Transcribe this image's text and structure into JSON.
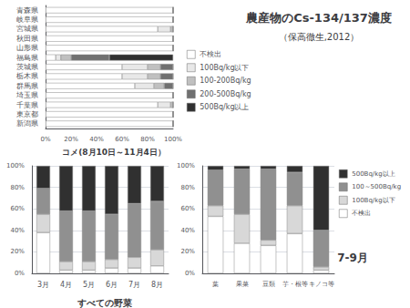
{
  "title": "農産物のCs-134/137濃度",
  "subtitle": "（保高徹生,2012）",
  "chart_data": [
    {
      "type": "bar",
      "orientation": "horizontal",
      "stacked": true,
      "title": "コメ(8月10日～11月4日）",
      "categories": [
        "青森県",
        "岐阜県",
        "宮城県",
        "秋田県",
        "山形県",
        "福島県",
        "茨城県",
        "栃木県",
        "群馬県",
        "埼玉県",
        "千葉県",
        "東京都",
        "新潟県"
      ],
      "series": [
        {
          "name": "不検出",
          "color": "#ffffff",
          "values": [
            100,
            100,
            88,
            100,
            100,
            8,
            60,
            60,
            70,
            100,
            88,
            100,
            100
          ]
        },
        {
          "name": "100Bq/kg以下",
          "color": "#e8e8e8",
          "values": [
            0,
            0,
            10,
            0,
            0,
            4,
            20,
            20,
            15,
            0,
            10,
            0,
            0
          ]
        },
        {
          "name": "100-200Bq/kg",
          "color": "#c0c0c0",
          "values": [
            0,
            0,
            2,
            0,
            0,
            8,
            10,
            10,
            8,
            0,
            2,
            0,
            0
          ]
        },
        {
          "name": "200-500Bq/kg",
          "color": "#707070",
          "values": [
            0,
            0,
            0,
            0,
            0,
            30,
            10,
            10,
            7,
            0,
            0,
            0,
            0
          ]
        },
        {
          "name": "500Bq/kg以上",
          "color": "#303030",
          "values": [
            0,
            0,
            0,
            0,
            0,
            50,
            0,
            0,
            0,
            0,
            0,
            0,
            0
          ]
        }
      ],
      "xlim": [
        0,
        100
      ],
      "xticks": [
        {
          "value": 0,
          "label": "0%"
        },
        {
          "value": 20,
          "label": "20%"
        },
        {
          "value": 40,
          "label": "40%"
        },
        {
          "value": 60,
          "label": "60%"
        },
        {
          "value": 80,
          "label": "80%"
        },
        {
          "value": 100,
          "label": "100%"
        }
      ],
      "grid": false,
      "legend": "right"
    },
    {
      "type": "bar",
      "stacked": true,
      "title": "すべての野菜",
      "categories": [
        "3月",
        "4月",
        "5月",
        "6月",
        "7月",
        "8月"
      ],
      "series": [
        {
          "name": "不検出",
          "color": "#ffffff",
          "values": [
            38,
            3,
            3,
            5,
            5,
            7
          ]
        },
        {
          "name": "100Bq/kg以下",
          "color": "#d8d8d8",
          "values": [
            17,
            8,
            8,
            8,
            10,
            15
          ]
        },
        {
          "name": "100～500Bq/kg",
          "color": "#909090",
          "values": [
            24,
            47,
            47,
            42,
            50,
            45
          ]
        },
        {
          "name": "500Bq/kg以上",
          "color": "#303030",
          "values": [
            21,
            42,
            42,
            45,
            35,
            33
          ]
        }
      ],
      "ylim": [
        0,
        100
      ],
      "yticks": [
        {
          "value": 0,
          "label": "0%"
        },
        {
          "value": 20,
          "label": "20%"
        },
        {
          "value": 40,
          "label": "40%"
        },
        {
          "value": 60,
          "label": "60%"
        },
        {
          "value": 80,
          "label": "80%"
        },
        {
          "value": 100,
          "label": "100%"
        }
      ],
      "grid": true
    },
    {
      "type": "bar",
      "stacked": true,
      "title": "7-9月",
      "categories": [
        "葉",
        "果菜",
        "豆類",
        "芋・根等",
        "キノコ等"
      ],
      "series": [
        {
          "name": "不検出",
          "color": "#ffffff",
          "values": [
            53,
            28,
            26,
            37,
            3
          ]
        },
        {
          "name": "100Bq/kg以下",
          "color": "#d8d8d8",
          "values": [
            10,
            27,
            5,
            26,
            3
          ]
        },
        {
          "name": "100～500Bq/kg",
          "color": "#909090",
          "values": [
            33,
            42,
            66,
            31,
            34
          ]
        },
        {
          "name": "500Bq/kg以上",
          "color": "#303030",
          "values": [
            4,
            3,
            3,
            6,
            60
          ]
        }
      ],
      "ylim": [
        0,
        100
      ],
      "yticks": [
        {
          "value": 0,
          "label": "0%"
        },
        {
          "value": 20,
          "label": "20%"
        },
        {
          "value": 40,
          "label": "40%"
        },
        {
          "value": 60,
          "label": "60%"
        },
        {
          "value": 80,
          "label": "80%"
        },
        {
          "value": 100,
          "label": "100%"
        }
      ],
      "grid": true,
      "legend": "right"
    }
  ]
}
